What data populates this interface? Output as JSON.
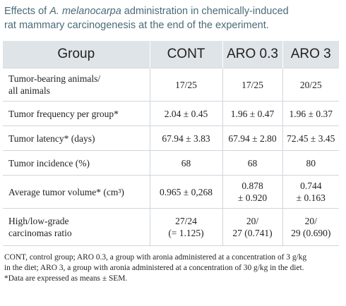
{
  "caption": {
    "prefix": "Effects of ",
    "species": "A. melanocarpa",
    "line1_rest": " administration in chemically-induced",
    "line2": "rat mammary carcinogenesis at the end of the experiment."
  },
  "table": {
    "headers": [
      "Group",
      "CONT",
      "ARO 0.3",
      "ARO 3"
    ],
    "rows": [
      {
        "label_lines": [
          "Tumor-bearing animals/",
          "all animals"
        ],
        "cells": [
          [
            "17/25"
          ],
          [
            "17/25"
          ],
          [
            "20/25"
          ]
        ]
      },
      {
        "label_lines": [
          "Tumor frequency per group*"
        ],
        "cells": [
          [
            "2.04 ± 0.45"
          ],
          [
            "1.96 ± 0.47"
          ],
          [
            "1.96 ± 0.37"
          ]
        ]
      },
      {
        "label_lines": [
          "Tumor latency* (days)"
        ],
        "cells": [
          [
            "67.94 ± 3.83"
          ],
          [
            "67.94 ± 2.80"
          ],
          [
            "72.45 ± 3.45"
          ]
        ]
      },
      {
        "label_lines": [
          "Tumor incidence (%)"
        ],
        "cells": [
          [
            "68"
          ],
          [
            "68"
          ],
          [
            "80"
          ]
        ]
      },
      {
        "label_lines": [
          "Average tumor volume* (cm³)"
        ],
        "cells": [
          [
            "0.965 ± 0,268"
          ],
          [
            "0.878",
            "± 0.920"
          ],
          [
            "0.744",
            "± 0.163"
          ]
        ]
      },
      {
        "label_lines": [
          "High/low-grade",
          "carcinomas ratio"
        ],
        "cells": [
          [
            "27/24",
            "(= 1.125)"
          ],
          [
            "20/",
            "27 (0.741)"
          ],
          [
            "20/",
            "29 (0.690)"
          ]
        ]
      }
    ]
  },
  "footnote": {
    "lines": [
      "CONT, control group; ARO 0.3, a group with aronia administered at a concentration of 3 g/kg",
      "in the diet; ARO 3, a group with aronia administered at a concentration of 30 g/kg in the diet.",
      "*Data are expressed as means ± SEM."
    ]
  }
}
